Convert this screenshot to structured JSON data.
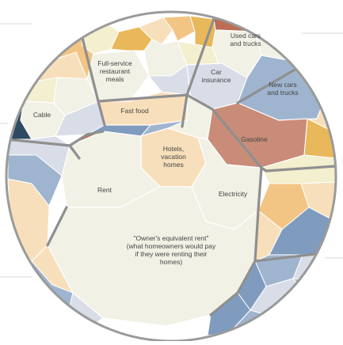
{
  "chart_data": {
    "type": "voronoi-treemap",
    "title": "",
    "colors": {
      "background": "#ffffff",
      "circle_outline": "#9a9a9a",
      "group_border": "#8f8f8f",
      "cell_stroke": "#ffffff",
      "default_fill": "#f2f1e6",
      "pale_yellow": "#f3efcf",
      "light_orange": "#f8dfbb",
      "orange": "#f3c585",
      "gold": "#e9b85a",
      "light_blue": "#d8dde8",
      "mid_blue": "#9fb4cf",
      "steel_blue": "#7f9cbf",
      "dark_blue": "#2f4a63",
      "terracotta": "#c98c79",
      "rust": "#bb6d55",
      "gray": "#bdbdbd"
    },
    "labeled_cells": [
      {
        "name": "used-cars-and-trucks",
        "lines": [
          "Used cars",
          "and trucks"
        ],
        "color": "#f2f1e6"
      },
      {
        "name": "car-insurance",
        "lines": [
          "Car",
          "insurance"
        ],
        "color": "#d8dde8"
      },
      {
        "name": "new-cars-and-trucks",
        "lines": [
          "New cars",
          "and trucks"
        ],
        "color": "#9fb4cf",
        "text_color": "#ffffff"
      },
      {
        "name": "gasoline",
        "lines": [
          "Gasoline"
        ],
        "color": "#c98c79",
        "text_color": "#ffffff"
      },
      {
        "name": "full-service-restaurant-meals",
        "lines": [
          "Full-service",
          "restaurant",
          "meals"
        ],
        "color": "#f2f1e6"
      },
      {
        "name": "fast-food",
        "lines": [
          "Fast food"
        ],
        "color": "#f8dfbb"
      },
      {
        "name": "cable",
        "lines": [
          "Cable"
        ],
        "color": "#f2f1e6"
      },
      {
        "name": "hotels-vacation-homes",
        "lines": [
          "Hotels,",
          "vacation",
          "homes"
        ],
        "color": "#f8dfbb"
      },
      {
        "name": "electricity",
        "lines": [
          "Electricity"
        ],
        "color": "#f2f1e6"
      },
      {
        "name": "rent",
        "lines": [
          "Rent"
        ],
        "color": "#f2f1e6"
      },
      {
        "name": "owners-equivalent-rent",
        "lines": [
          "\"Owner's equivalent rent\"",
          "(what homeowners would pay",
          "if they were renting their",
          "homes)"
        ],
        "color": "#f2f1e6"
      }
    ]
  }
}
